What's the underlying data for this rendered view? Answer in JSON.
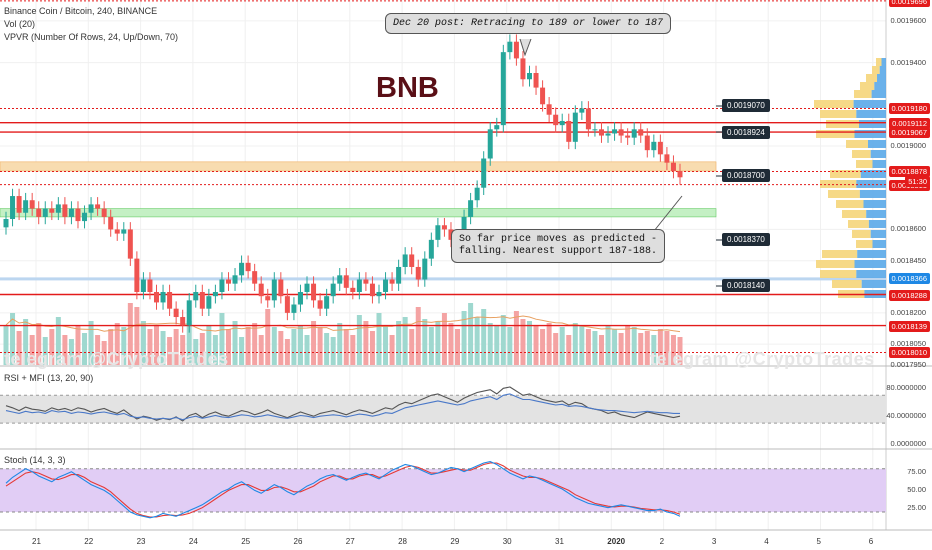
{
  "header": {
    "symbol_line": "Binance Coin / Bitcoin, 240, BINANCE",
    "vol_line": "Vol (20)",
    "vpvr_line": "VPVR (Number Of Rows, 24, Up/Down, 70)",
    "rsi_line": "RSI + MFI (13, 20, 90)",
    "stoch_line": "Stoch (14, 3, 3)"
  },
  "watermark": {
    "left": "telegram @CryptoTrades",
    "right": "telegram @CryptoTrades"
  },
  "chart_title": "BNB",
  "annotations": {
    "top": "Dec 20 post: Retracing to 189 or lower to 187",
    "bottom_line1": "So far price moves as predicted -",
    "bottom_line2": "falling. Nearest support 187-188."
  },
  "colors": {
    "up": "#26a69a",
    "down": "#ef5350",
    "level": "#e31b1b",
    "orange_zone": "#f8dcb0",
    "green_zone": "#c4f0c4"
  },
  "chart_data": {
    "type": "candlestick",
    "title": "BNB",
    "x_ticks": [
      "21",
      "22",
      "23",
      "24",
      "25",
      "26",
      "27",
      "28",
      "29",
      "30",
      "31",
      "2020",
      "2",
      "3",
      "4",
      "5",
      "6"
    ],
    "y_ticks": [
      "0.0019600",
      "0.0019400",
      "0.0019000",
      "0.0018600",
      "0.0018450",
      "0.0018200",
      "0.0018050",
      "0.0017950"
    ],
    "ylim": [
      0.001795,
      0.00197
    ],
    "price_labels": [
      {
        "value": "0.0019696",
        "color": "#e31b1b"
      },
      {
        "value": "0.0019180",
        "color": "#e31b1b"
      },
      {
        "value": "0.0019112",
        "color": "#e31b1b"
      },
      {
        "value": "0.0019067",
        "color": "#e31b1b"
      },
      {
        "value": "0.0018878",
        "color": "#e31b1b"
      },
      {
        "value": "0.0018815",
        "color": "#e31b1b"
      },
      {
        "value": "0.0018366",
        "color": "#1e88e5"
      },
      {
        "value": "0.0018288",
        "color": "#e31b1b"
      },
      {
        "value": "0.0018139",
        "color": "#e31b1b"
      },
      {
        "value": "0.0018010",
        "color": "#e31b1b"
      }
    ],
    "countdown": "51:30",
    "level_tags": [
      "0.0019070",
      "0.0018924",
      "0.0018700",
      "0.0018370",
      "0.0018140"
    ],
    "close": [
      0.001865,
      0.001876,
      0.001868,
      0.001874,
      0.00187,
      0.001866,
      0.00187,
      0.001868,
      0.001872,
      0.001866,
      0.00187,
      0.001864,
      0.001868,
      0.001872,
      0.00187,
      0.001866,
      0.00186,
      0.001858,
      0.00186,
      0.001846,
      0.00183,
      0.001836,
      0.00183,
      0.001825,
      0.00183,
      0.001822,
      0.001818,
      0.001814,
      0.001826,
      0.00183,
      0.001822,
      0.001828,
      0.00183,
      0.001836,
      0.001834,
      0.001838,
      0.001844,
      0.00184,
      0.001834,
      0.001828,
      0.001826,
      0.001836,
      0.001828,
      0.00182,
      0.001824,
      0.00183,
      0.001834,
      0.001826,
      0.001822,
      0.001828,
      0.001834,
      0.001838,
      0.001832,
      0.00183,
      0.001836,
      0.001834,
      0.001828,
      0.00183,
      0.001836,
      0.001834,
      0.001842,
      0.001848,
      0.001842,
      0.001836,
      0.001846,
      0.001855,
      0.001862,
      0.00186,
      0.001855,
      0.001852,
      0.001866,
      0.001874,
      0.00188,
      0.001894,
      0.001908,
      0.00191,
      0.001945,
      0.00195,
      0.001942,
      0.001932,
      0.001935,
      0.001928,
      0.00192,
      0.001915,
      0.00191,
      0.001912,
      0.001902,
      0.001916,
      0.001918,
      0.001908,
      0.001908,
      0.001905,
      0.001906,
      0.001908,
      0.001905,
      0.001904,
      0.001908,
      0.001905,
      0.001898,
      0.001902,
      0.001896,
      0.001892,
      0.001888,
      0.001885
    ],
    "volume": [
      40,
      52,
      34,
      46,
      30,
      42,
      28,
      36,
      48,
      30,
      26,
      40,
      32,
      44,
      30,
      24,
      36,
      42,
      38,
      62,
      58,
      44,
      36,
      40,
      34,
      28,
      36,
      30,
      44,
      26,
      32,
      40,
      30,
      52,
      36,
      44,
      28,
      38,
      42,
      30,
      56,
      38,
      34,
      26,
      36,
      40,
      30,
      44,
      38,
      32,
      28,
      42,
      36,
      30,
      50,
      44,
      34,
      52,
      40,
      30,
      44,
      48,
      36,
      58,
      46,
      38,
      44,
      52,
      42,
      36,
      54,
      62,
      48,
      56,
      42,
      40,
      50,
      38,
      54,
      46,
      44,
      40,
      36,
      42,
      32,
      38,
      30,
      42,
      40,
      36,
      34,
      30,
      40,
      36,
      32,
      40,
      38,
      32,
      34,
      30,
      36,
      34,
      30,
      28
    ],
    "rsi": [
      55,
      52,
      48,
      53,
      50,
      49,
      47,
      52,
      49,
      51,
      48,
      52,
      50,
      46,
      49,
      51,
      47,
      44,
      49,
      42,
      36,
      40,
      38,
      34,
      37,
      35,
      39,
      33,
      41,
      44,
      38,
      43,
      46,
      42,
      40,
      44,
      48,
      46,
      42,
      45,
      49,
      44,
      41,
      38,
      42,
      46,
      43,
      40,
      44,
      46,
      48,
      45,
      42,
      46,
      49,
      47,
      44,
      48,
      52,
      50,
      56,
      60,
      58,
      62,
      66,
      70,
      72,
      68,
      64,
      60,
      66,
      70,
      74,
      76,
      78,
      72,
      80,
      82,
      76,
      70,
      72,
      68,
      64,
      62,
      60,
      62,
      56,
      60,
      58,
      52,
      50,
      48,
      44,
      46,
      42,
      40,
      38,
      42,
      46,
      44,
      42,
      40,
      38,
      40
    ],
    "mfi": [
      48,
      46,
      44,
      47,
      45,
      46,
      44,
      48,
      46,
      47,
      44,
      46,
      45,
      43,
      45,
      46,
      44,
      42,
      44,
      40,
      38,
      39,
      37,
      36,
      37,
      36,
      38,
      35,
      38,
      40,
      37,
      39,
      41,
      39,
      38,
      40,
      42,
      41,
      39,
      40,
      42,
      40,
      38,
      37,
      39,
      41,
      40,
      38,
      40,
      41,
      42,
      41,
      39,
      41,
      43,
      42,
      40,
      42,
      45,
      44,
      48,
      52,
      54,
      56,
      58,
      60,
      62,
      60,
      58,
      56,
      58,
      62,
      64,
      66,
      68,
      64,
      70,
      72,
      68,
      64,
      64,
      62,
      60,
      58,
      56,
      57,
      54,
      55,
      54,
      52,
      50,
      49,
      48,
      48,
      47,
      46,
      45,
      46,
      47,
      46,
      45,
      45,
      44,
      44
    ],
    "stoch_k": [
      60,
      68,
      74,
      80,
      76,
      70,
      66,
      62,
      68,
      72,
      76,
      70,
      64,
      58,
      54,
      50,
      44,
      36,
      28,
      20,
      16,
      14,
      12,
      14,
      18,
      16,
      14,
      18,
      22,
      26,
      30,
      36,
      42,
      48,
      52,
      58,
      62,
      56,
      50,
      46,
      52,
      58,
      54,
      48,
      44,
      50,
      56,
      60,
      66,
      70,
      72,
      68,
      64,
      68,
      72,
      74,
      70,
      66,
      72,
      78,
      82,
      86,
      84,
      80,
      76,
      72,
      74,
      78,
      82,
      80,
      76,
      80,
      84,
      88,
      90,
      86,
      80,
      74,
      70,
      66,
      70,
      68,
      64,
      60,
      56,
      52,
      46,
      40,
      36,
      32,
      30,
      28,
      26,
      28,
      30,
      28,
      26,
      24,
      22,
      22,
      24,
      20,
      18,
      14
    ],
    "stoch_d": [
      56,
      62,
      68,
      74,
      76,
      74,
      70,
      66,
      65,
      68,
      72,
      72,
      68,
      62,
      58,
      54,
      48,
      40,
      32,
      24,
      18,
      15,
      13,
      13,
      15,
      16,
      15,
      16,
      18,
      22,
      26,
      32,
      38,
      44,
      50,
      54,
      58,
      58,
      54,
      50,
      50,
      54,
      55,
      52,
      48,
      48,
      52,
      56,
      62,
      66,
      70,
      70,
      66,
      66,
      70,
      72,
      72,
      68,
      70,
      74,
      78,
      82,
      84,
      82,
      78,
      74,
      74,
      76,
      78,
      80,
      78,
      78,
      82,
      86,
      88,
      88,
      84,
      78,
      74,
      70,
      68,
      68,
      66,
      62,
      58,
      54,
      50,
      44,
      40,
      36,
      32,
      30,
      28,
      27,
      28,
      28,
      27,
      25,
      24,
      23,
      23,
      22,
      20,
      17
    ],
    "rsi_ticks": [
      "80.0000000",
      "40.0000000",
      "0.0000000"
    ],
    "stoch_ticks": [
      "75.00",
      "50.00",
      "25.00"
    ]
  }
}
